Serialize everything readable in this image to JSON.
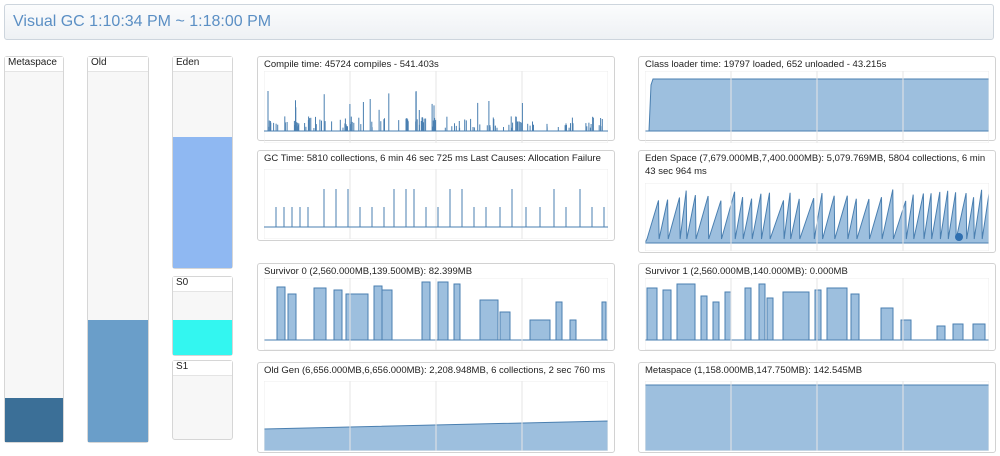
{
  "header": {
    "title": "Visual GC 1:10:34 PM ~ 1:18:00 PM"
  },
  "gauges": [
    {
      "label": "Metaspace",
      "fill_fraction": 0.12,
      "color": "#3b6f97"
    },
    {
      "label": "Old",
      "fill_fraction": 0.33,
      "color": "#6a9ec9"
    },
    {
      "label": "Eden",
      "fill_fraction": 0.67,
      "color": "#8fb8f2"
    },
    {
      "label": "S0",
      "fill_fraction": 0.55,
      "color": "#33f6f0"
    },
    {
      "label": "S1",
      "fill_fraction": 0.0,
      "color": "#33f6f0"
    }
  ],
  "panels": {
    "compile_time": {
      "title": "Compile time: 45724 compiles - 541.403s"
    },
    "class_loader": {
      "title": "Class loader time: 19797 loaded, 652 unloaded - 43.215s"
    },
    "gc_time": {
      "title": "GC Time: 5810 collections, 6 min 46 sec 725 ms Last Causes: Allocation Failure"
    },
    "eden_space": {
      "title": "Eden Space (7,679.000MB,7,400.000MB): 5,079.769MB, 5804 collections, 6 min 43 sec 964 ms"
    },
    "survivor0": {
      "title": "Survivor 0 (2,560.000MB,139.500MB): 82.399MB"
    },
    "survivor1": {
      "title": "Survivor 1 (2,560.000MB,140.000MB): 0.000MB"
    },
    "old_gen": {
      "title": "Old Gen (6,656.000MB,6,656.000MB): 2,208.948MB, 6 collections, 2 sec 760 ms"
    },
    "metaspace": {
      "title": "Metaspace (1,158.000MB,147.750MB): 142.545MB"
    }
  },
  "colors": {
    "stroke": "#4a7fb0",
    "fill": "#9dbfde",
    "grid": "#e6e6e6"
  }
}
